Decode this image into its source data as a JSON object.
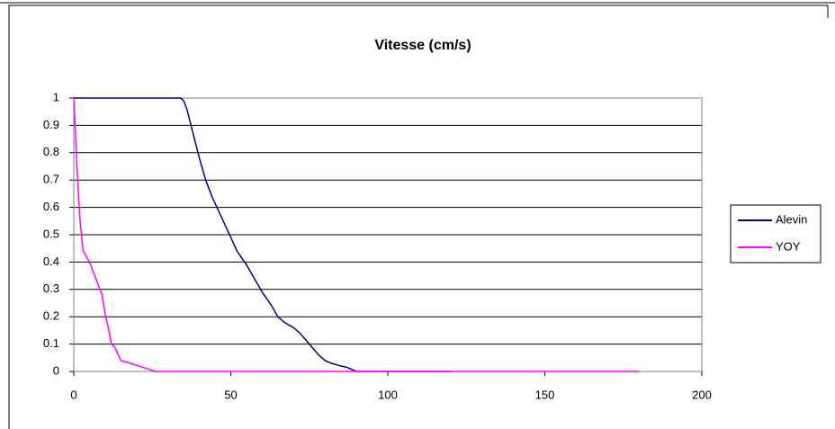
{
  "chart_data": {
    "type": "line",
    "title": "Vitesse (cm/s)",
    "xlim": [
      0,
      200
    ],
    "xticks": [
      0,
      50,
      100,
      150,
      200
    ],
    "ylim": [
      0,
      1
    ],
    "yticks": [
      0,
      0.1,
      0.2,
      0.3,
      0.4,
      0.5,
      0.6,
      0.7,
      0.8,
      0.9,
      1
    ],
    "grid": true,
    "legend": "right",
    "series": [
      {
        "name": "Alevin",
        "color": "#000080",
        "x": [
          0,
          30,
          34,
          35,
          36,
          38,
          40,
          42,
          44,
          46,
          48,
          50,
          52,
          55,
          58,
          60,
          63,
          65,
          67,
          70,
          72,
          75,
          78,
          80,
          82,
          85,
          87,
          90,
          120
        ],
        "values": [
          1,
          1,
          1,
          0.99,
          0.96,
          0.87,
          0.78,
          0.7,
          0.64,
          0.59,
          0.54,
          0.49,
          0.44,
          0.39,
          0.33,
          0.29,
          0.24,
          0.2,
          0.18,
          0.16,
          0.14,
          0.1,
          0.06,
          0.04,
          0.03,
          0.02,
          0.015,
          0,
          0
        ]
      },
      {
        "name": "YOY",
        "color": "#ff00ff",
        "x": [
          0,
          1,
          2,
          3,
          5,
          7,
          9,
          10,
          11,
          12,
          13,
          15,
          18,
          22,
          26,
          180
        ],
        "values": [
          1,
          0.75,
          0.55,
          0.44,
          0.4,
          0.34,
          0.28,
          0.21,
          0.16,
          0.1,
          0.09,
          0.04,
          0.03,
          0.015,
          0,
          0
        ]
      }
    ]
  }
}
